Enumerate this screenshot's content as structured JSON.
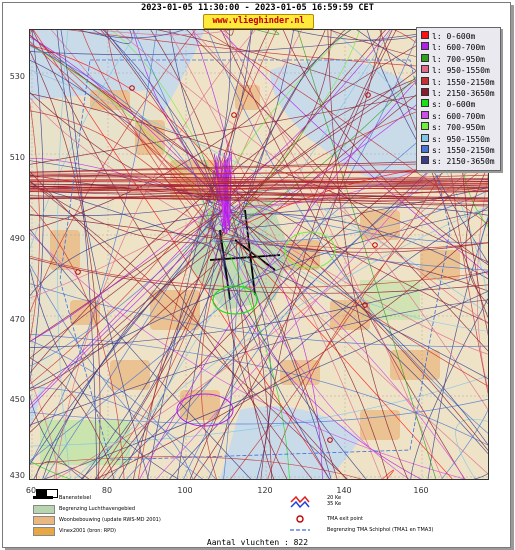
{
  "header": {
    "title": "2023-01-05 11:30:00 - 2023-01-05 16:59:59 CET",
    "brand": "www.vlieghinder.nl"
  },
  "map": {
    "y_ticks": [
      "530",
      "510",
      "490",
      "470",
      "450",
      "430"
    ],
    "x_ticks": [
      "60",
      "80",
      "100",
      "120",
      "140",
      "160"
    ],
    "colors": {
      "sea": "#c9dbe9",
      "land": "#eee3c6",
      "urban": "#eab77f",
      "airport": "#b8d5b2",
      "greenery": "#c4e3a9",
      "runway": "#000000"
    }
  },
  "legend": {
    "items": [
      {
        "label": "l: 0-600m",
        "color": "#ff1010"
      },
      {
        "label": "l: 600-700m",
        "color": "#b21fe6"
      },
      {
        "label": "l: 700-950m",
        "color": "#2fa01c"
      },
      {
        "label": "l: 950-1550m",
        "color": "#e06a8a"
      },
      {
        "label": "l: 1550-2150m",
        "color": "#c73030"
      },
      {
        "label": "l: 2150-3650m",
        "color": "#8a1c30"
      },
      {
        "label": "s: 0-600m",
        "color": "#16e016"
      },
      {
        "label": "s: 600-700m",
        "color": "#d04de6"
      },
      {
        "label": "s: 700-950m",
        "color": "#70ee3c"
      },
      {
        "label": "s: 950-1550m",
        "color": "#7fc5e8"
      },
      {
        "label": "s: 1550-2150m",
        "color": "#4a74d2"
      },
      {
        "label": "s: 2150-3650m",
        "color": "#3b3b8a"
      }
    ]
  },
  "bottom_legend": {
    "banenstelsel": "Banenstelsel",
    "luchthaven": "Begrenzing Luchthavengebied",
    "woonbebouwing": "Woonbebouwing (update RWS-MD 2001)",
    "vinex": "Vinex2001 (bron: RPD)",
    "ke": "20 Ke\n35 Ke",
    "tma_exit": "TMA exit point",
    "tma_schiphol": "Begrenzing TMA Schiphol  (TMA1 en TMA3)"
  },
  "footer": {
    "flights": "Aantal vluchten : 822"
  }
}
